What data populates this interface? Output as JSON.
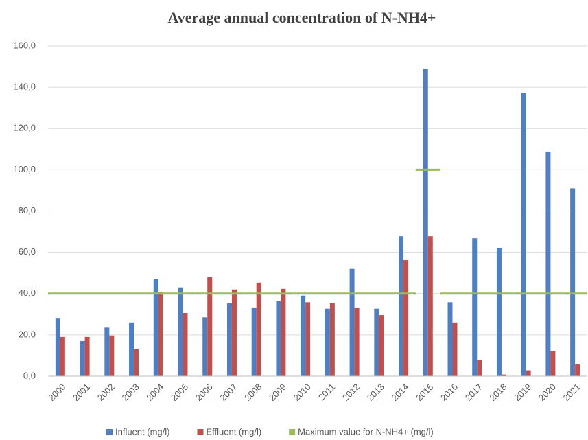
{
  "chart_data": {
    "type": "bar",
    "title": "Average annual concentration of N-NH4+",
    "categories": [
      "2000",
      "2001",
      "2002",
      "2003",
      "2004",
      "2005",
      "2006",
      "2007",
      "2008",
      "2009",
      "2010",
      "2011",
      "2012",
      "2013",
      "2014",
      "2015",
      "2016",
      "2017",
      "2018",
      "2019",
      "2020",
      "2021"
    ],
    "series": [
      {
        "name": "Influent (mg/l)",
        "color": "#4f7fc0",
        "type": "bar",
        "values": [
          28.2,
          17,
          23.5,
          26,
          47,
          43,
          28.5,
          35.3,
          33.3,
          36.3,
          39,
          32.7,
          52,
          32.7,
          67.8,
          149,
          35.8,
          66.8,
          62.2,
          137.3,
          108.8,
          91
        ]
      },
      {
        "name": "Effluent (mg/l)",
        "color": "#c0504d",
        "type": "bar",
        "values": [
          19,
          19,
          19.7,
          13,
          40.8,
          30.6,
          48,
          42,
          45.3,
          42.3,
          35.8,
          35.3,
          33.3,
          29.6,
          56.2,
          67.8,
          26,
          7.8,
          0.8,
          2.8,
          12,
          5.7
        ]
      },
      {
        "name": "Maximum value for N-NH4+ (mg/l)",
        "color": "#9bbb59",
        "type": "line",
        "values": [
          40,
          40,
          40,
          40,
          40,
          40,
          40,
          40,
          40,
          40,
          40,
          40,
          40,
          40,
          40,
          100,
          40,
          40,
          40,
          40,
          40,
          40
        ]
      }
    ],
    "ylim": [
      0,
      160
    ],
    "yticks": [
      {
        "value": 0,
        "label": "0,0"
      },
      {
        "value": 20,
        "label": "20,0"
      },
      {
        "value": 40,
        "label": "40,0"
      },
      {
        "value": 60,
        "label": "60,0"
      },
      {
        "value": 80,
        "label": "80,0"
      },
      {
        "value": 100,
        "label": "100,0"
      },
      {
        "value": 120,
        "label": "120,0"
      },
      {
        "value": 140,
        "label": "140,0"
      },
      {
        "value": 160,
        "label": "160,0"
      }
    ],
    "grid": true
  }
}
